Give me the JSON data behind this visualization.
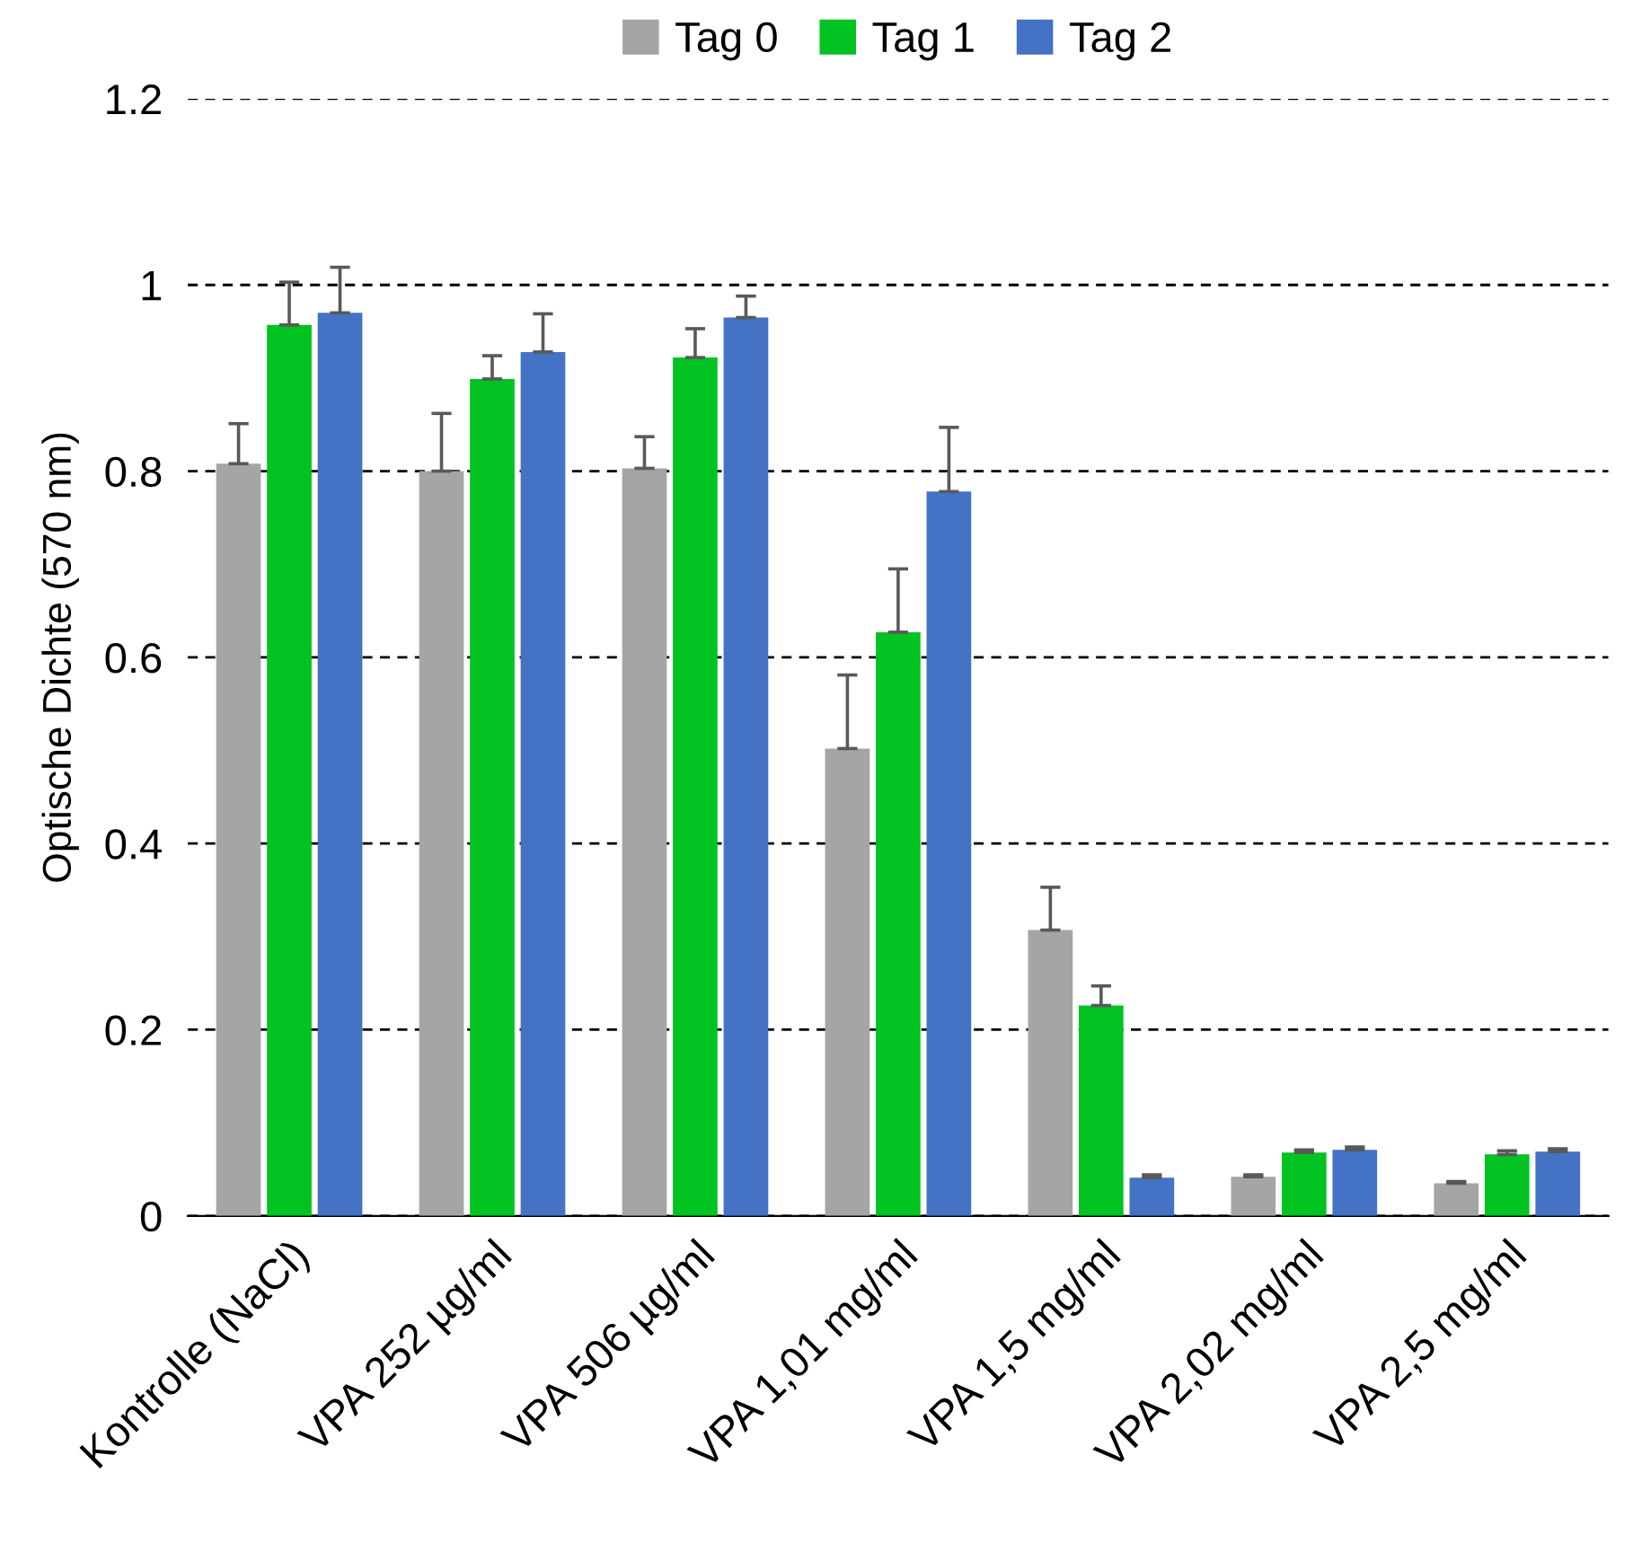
{
  "chart_data": {
    "type": "bar",
    "ylabel": "Optische Dichte (570 nm)",
    "categories": [
      "Kontrolle (NaCl)",
      "VPA 252 µg/ml",
      "VPA 506 µg/ml",
      "VPA 1,01 mg/ml",
      "VPA 1,5 mg/ml",
      "VPA 2,02 mg/ml",
      "VPA 2,5 mg/ml"
    ],
    "series": [
      {
        "name": "Tag 0",
        "color": "#a5a5a5",
        "values": [
          0.808,
          0.8,
          0.803,
          0.502,
          0.307,
          0.042,
          0.035
        ],
        "errors": [
          [
            0.808,
            0.851
          ],
          [
            0.8,
            0.862
          ],
          [
            0.803,
            0.837
          ],
          [
            0.502,
            0.581
          ],
          [
            0.307,
            0.353
          ],
          [
            0.042,
            0.044
          ],
          [
            0.035,
            0.037
          ]
        ]
      },
      {
        "name": "Tag 1",
        "color": "#00c322",
        "values": [
          0.957,
          0.899,
          0.922,
          0.627,
          0.226,
          0.068,
          0.066
        ],
        "errors": [
          [
            0.957,
            1.003
          ],
          [
            0.899,
            0.924
          ],
          [
            0.922,
            0.953
          ],
          [
            0.627,
            0.695
          ],
          [
            0.226,
            0.247
          ],
          [
            0.068,
            0.071
          ],
          [
            0.066,
            0.07
          ]
        ]
      },
      {
        "name": "Tag 2",
        "color": "#4472c4",
        "values": [
          0.97,
          0.928,
          0.965,
          0.778,
          0.041,
          0.071,
          0.069
        ],
        "errors": [
          [
            0.97,
            1.019
          ],
          [
            0.928,
            0.969
          ],
          [
            0.965,
            0.988
          ],
          [
            0.778,
            0.847
          ],
          [
            0.041,
            0.044
          ],
          [
            0.071,
            0.074
          ],
          [
            0.069,
            0.072
          ]
        ]
      }
    ],
    "ylim": [
      0,
      1.2
    ],
    "yticks": [
      0,
      0.2,
      0.4,
      0.6,
      0.8,
      1,
      1.2
    ],
    "grid": "y",
    "legend": "top"
  }
}
